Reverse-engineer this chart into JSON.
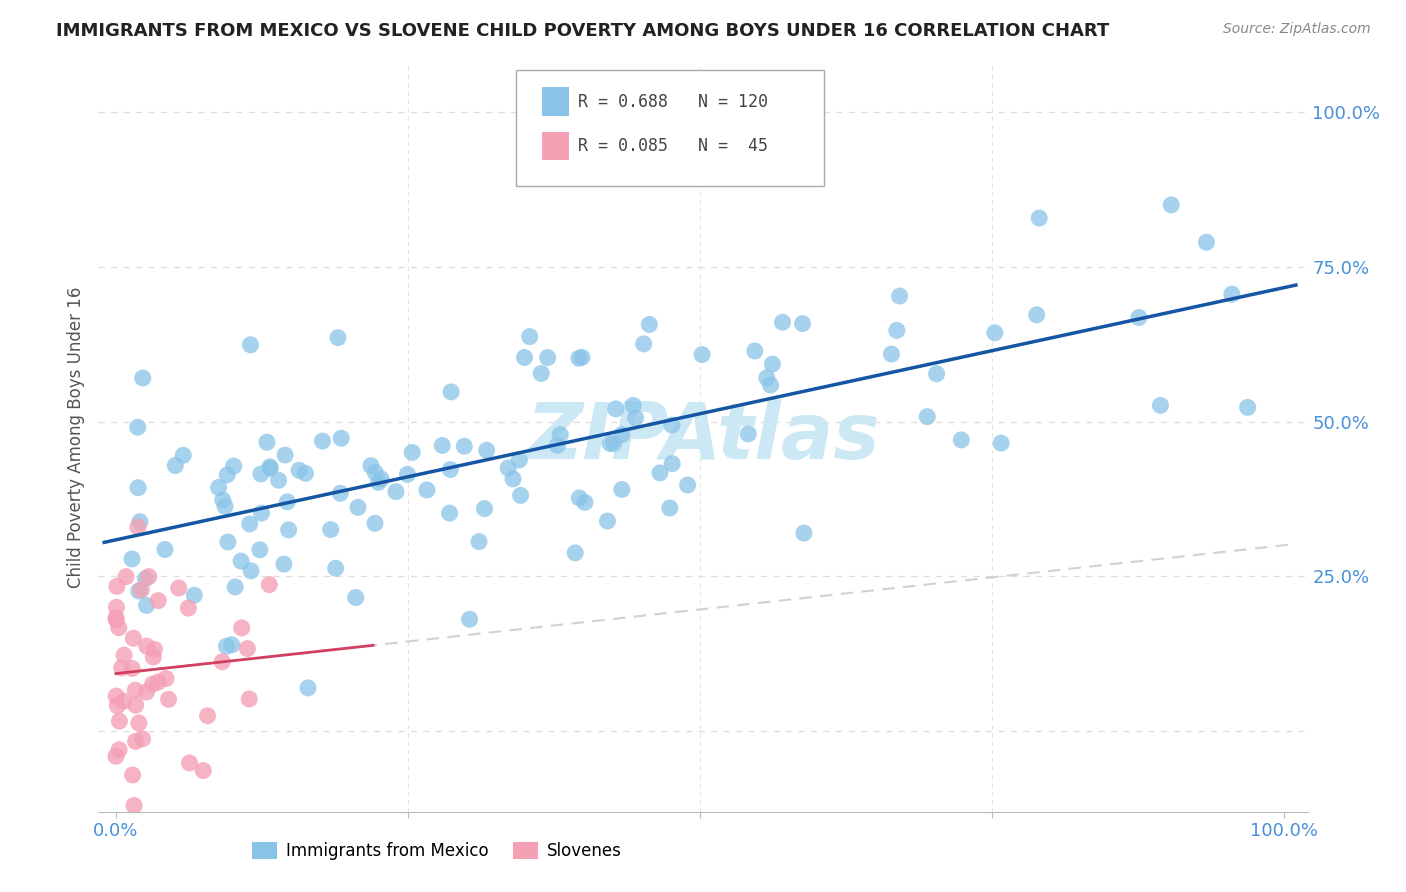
{
  "title": "IMMIGRANTS FROM MEXICO VS SLOVENE CHILD POVERTY AMONG BOYS UNDER 16 CORRELATION CHART",
  "source": "Source: ZipAtlas.com",
  "ylabel": "Child Poverty Among Boys Under 16",
  "blue_R": 0.688,
  "blue_N": 120,
  "pink_R": 0.085,
  "pink_N": 45,
  "blue_color": "#89c4e8",
  "pink_color": "#f4a0b5",
  "blue_line_color": "#1455a4",
  "pink_line_color_solid": "#d04060",
  "pink_line_color_dash": "#cccccc",
  "watermark_color": "#cce8f5",
  "title_color": "#222222",
  "source_color": "#888888",
  "axis_label_color": "#4a90d9",
  "ylabel_color": "#555555",
  "grid_color": "#dddddd",
  "legend_edge_color": "#aaaaaa"
}
